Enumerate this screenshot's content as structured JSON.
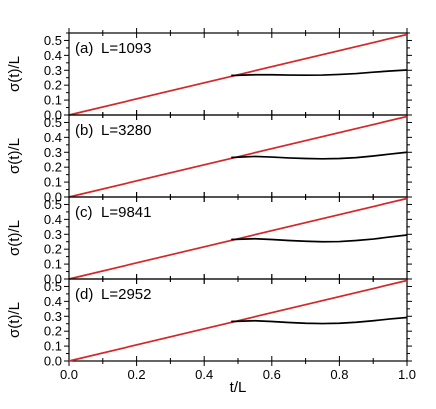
{
  "chart_data": [
    {
      "type": "line",
      "panel_label": "(a)",
      "annotation": "L=1093",
      "ylabel": "σ(t)/L",
      "xlim": [
        0,
        1
      ],
      "ylim": [
        0,
        0.55
      ],
      "yticks": [
        "0.0",
        "0.1",
        "0.2",
        "0.3",
        "0.4",
        "0.5"
      ],
      "grid": false,
      "series": [
        {
          "color": "#d62728",
          "x": [
            0,
            1
          ],
          "y": [
            0,
            0.54
          ]
        },
        {
          "color": "#000000",
          "x": [
            0.48,
            0.55,
            0.6,
            0.65,
            0.7,
            0.75,
            0.8,
            0.85,
            0.9,
            0.95,
            1.0
          ],
          "y": [
            0.265,
            0.27,
            0.27,
            0.268,
            0.267,
            0.268,
            0.272,
            0.278,
            0.287,
            0.295,
            0.302
          ]
        }
      ]
    },
    {
      "type": "line",
      "panel_label": "(b)",
      "annotation": "L=3280",
      "ylabel": "σ(t)/L",
      "xlim": [
        0,
        1
      ],
      "ylim": [
        0,
        0.55
      ],
      "yticks": [
        "0.0",
        "0.1",
        "0.2",
        "0.3",
        "0.4",
        "0.5"
      ],
      "grid": false,
      "series": [
        {
          "color": "#d62728",
          "x": [
            0,
            1
          ],
          "y": [
            0,
            0.54
          ]
        },
        {
          "color": "#000000",
          "x": [
            0.48,
            0.55,
            0.6,
            0.65,
            0.7,
            0.75,
            0.8,
            0.85,
            0.9,
            0.95,
            1.0
          ],
          "y": [
            0.265,
            0.272,
            0.268,
            0.262,
            0.258,
            0.256,
            0.258,
            0.264,
            0.275,
            0.288,
            0.3
          ]
        }
      ]
    },
    {
      "type": "line",
      "panel_label": "(c)",
      "annotation": "L=9841",
      "ylabel": "σ(t)/L",
      "xlim": [
        0,
        1
      ],
      "ylim": [
        0,
        0.55
      ],
      "yticks": [
        "0.0",
        "0.1",
        "0.2",
        "0.3",
        "0.4",
        "0.5"
      ],
      "grid": false,
      "series": [
        {
          "color": "#d62728",
          "x": [
            0,
            1
          ],
          "y": [
            0,
            0.54
          ]
        },
        {
          "color": "#000000",
          "x": [
            0.48,
            0.55,
            0.6,
            0.65,
            0.7,
            0.75,
            0.8,
            0.85,
            0.9,
            0.95,
            1.0
          ],
          "y": [
            0.265,
            0.27,
            0.265,
            0.258,
            0.253,
            0.25,
            0.251,
            0.258,
            0.268,
            0.282,
            0.295
          ]
        }
      ]
    },
    {
      "type": "line",
      "panel_label": "(d)",
      "annotation": "L=2952",
      "ylabel": "σ(t)/L",
      "xlabel": "t/L",
      "xlim": [
        0,
        1
      ],
      "ylim": [
        0,
        0.55
      ],
      "xticks": [
        "0.0",
        "0.2",
        "0.4",
        "0.6",
        "0.8",
        "1.0"
      ],
      "yticks": [
        "0.0",
        "0.1",
        "0.2",
        "0.3",
        "0.4",
        "0.5"
      ],
      "grid": false,
      "series": [
        {
          "color": "#d62728",
          "x": [
            0,
            1
          ],
          "y": [
            0,
            0.54
          ]
        },
        {
          "color": "#000000",
          "x": [
            0.48,
            0.55,
            0.6,
            0.65,
            0.7,
            0.75,
            0.8,
            0.85,
            0.9,
            0.95,
            1.0
          ],
          "y": [
            0.265,
            0.27,
            0.265,
            0.258,
            0.253,
            0.251,
            0.253,
            0.26,
            0.27,
            0.282,
            0.292
          ]
        }
      ]
    }
  ]
}
